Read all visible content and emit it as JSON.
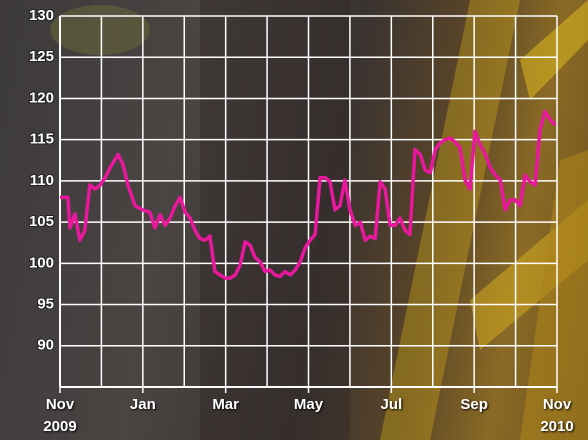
{
  "chart_data": {
    "type": "line",
    "x": [
      0,
      0.19,
      0.24,
      0.36,
      0.48,
      0.6,
      0.72,
      0.85,
      0.97,
      1.09,
      1.21,
      1.4,
      1.52,
      1.64,
      1.81,
      1.98,
      2.17,
      2.29,
      2.42,
      2.54,
      2.66,
      2.78,
      2.9,
      3.02,
      3.14,
      3.26,
      3.38,
      3.5,
      3.62,
      3.74,
      3.86,
      3.99,
      4.11,
      4.23,
      4.35,
      4.47,
      4.59,
      4.71,
      4.83,
      4.95,
      5.07,
      5.19,
      5.31,
      5.43,
      5.56,
      5.68,
      5.8,
      5.92,
      6.04,
      6.16,
      6.28,
      6.4,
      6.52,
      6.64,
      6.76,
      6.88,
      7.0,
      7.13,
      7.25,
      7.37,
      7.49,
      7.61,
      7.73,
      7.85,
      7.97,
      8.09,
      8.21,
      8.33,
      8.45,
      8.57,
      8.7,
      8.82,
      8.94,
      9.06,
      9.18,
      9.3,
      9.42,
      9.54,
      9.66,
      9.78,
      9.9,
      10.02,
      10.14,
      10.27,
      10.39,
      10.51,
      10.63,
      10.75,
      10.87,
      10.99,
      11.11,
      11.23,
      11.35,
      11.47,
      11.59,
      11.71,
      11.84,
      11.96
    ],
    "series": [
      {
        "color": "#e8189c",
        "values": [
          108,
          108,
          104.3,
          106,
          102.8,
          104,
          109.5,
          109,
          109.5,
          110.4,
          111.6,
          113.2,
          112,
          109.5,
          107,
          106.5,
          106.2,
          104.3,
          105.9,
          104.6,
          105.5,
          107,
          108,
          106.2,
          105.5,
          104,
          103,
          102.8,
          103.3,
          99,
          98.6,
          98.2,
          98.2,
          98.6,
          99.8,
          102.6,
          102.2,
          100.7,
          100.2,
          99,
          99.2,
          98.6,
          98.4,
          99,
          98.6,
          99.2,
          100.2,
          101.9,
          102.8,
          103.5,
          110.4,
          110.4,
          109.9,
          106.5,
          107,
          110.1,
          106.5,
          104.6,
          105,
          102.8,
          103.3,
          103,
          109.9,
          109,
          104.6,
          104.6,
          105.5,
          104,
          103.5,
          113.8,
          113.2,
          111.3,
          111,
          113.8,
          114.6,
          115,
          115.2,
          114.7,
          114,
          110.1,
          109,
          116,
          114.4,
          113.2,
          111.6,
          110.7,
          110.1,
          106.5,
          107.7,
          107.7,
          107,
          110.7,
          109.9,
          109.5,
          116.2,
          118.4,
          117.4,
          116.8
        ]
      }
    ],
    "xlim": [
      0,
      12
    ],
    "xticks": [
      {
        "value": 0,
        "label": "Nov\n2009"
      },
      {
        "value": 2,
        "label": "Jan"
      },
      {
        "value": 4,
        "label": "Mar"
      },
      {
        "value": 6,
        "label": "May"
      },
      {
        "value": 8,
        "label": "Jul"
      },
      {
        "value": 10,
        "label": "Sep"
      },
      {
        "value": 12,
        "label": "Nov\n2010"
      }
    ],
    "xgrid": [
      1,
      3,
      5,
      7,
      9,
      11
    ],
    "ylim": [
      85,
      130
    ],
    "yticks": [
      90,
      95,
      100,
      105,
      110,
      115,
      120,
      125,
      130
    ],
    "grid": true
  }
}
